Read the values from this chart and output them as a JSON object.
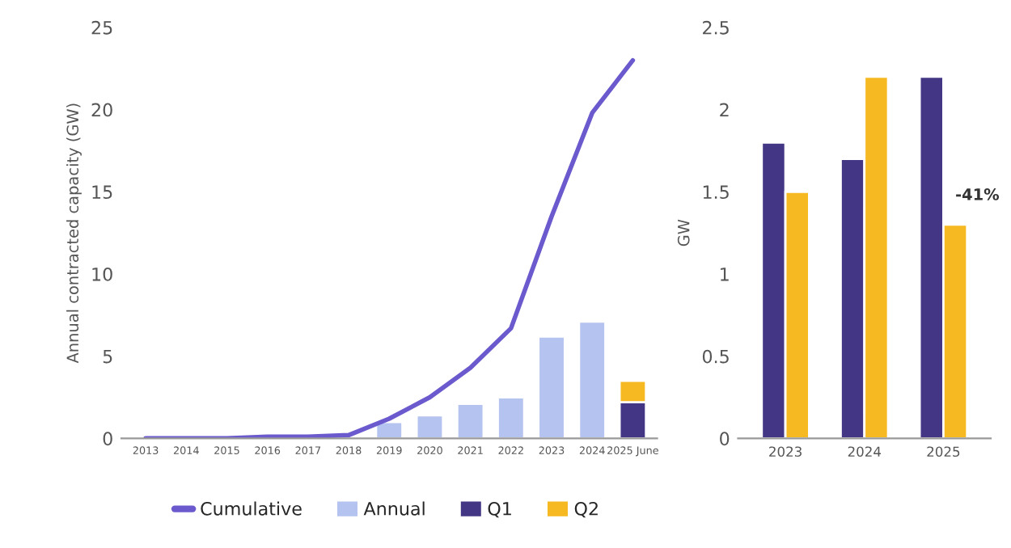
{
  "chart_data": [
    {
      "type": "bar",
      "stacked": true,
      "ylabel": "Annual contracted capacity (GW)",
      "categories": [
        "2013",
        "2014",
        "2015",
        "2016",
        "2017",
        "2018",
        "2019",
        "2020",
        "2021",
        "2022",
        "2023",
        "2024",
        "2025 June"
      ],
      "series": [
        {
          "name": "Annual",
          "color": "#b4c3ef",
          "values": [
            null,
            null,
            null,
            null,
            null,
            null,
            1.0,
            1.4,
            2.1,
            2.5,
            6.2,
            7.1,
            null
          ]
        },
        {
          "name": "Q1",
          "color": "#433785",
          "values": [
            null,
            null,
            null,
            null,
            null,
            null,
            null,
            null,
            null,
            null,
            null,
            null,
            2.2
          ]
        },
        {
          "name": "Q2",
          "color": "#f6b922",
          "values": [
            null,
            null,
            null,
            null,
            null,
            null,
            null,
            null,
            null,
            null,
            null,
            null,
            1.3
          ]
        },
        {
          "name": "Cumulative",
          "type": "line",
          "color": "#6a5acd",
          "values": [
            0,
            0,
            0,
            0.1,
            0.1,
            0.2,
            1.2,
            2.5,
            4.3,
            6.7,
            13.5,
            19.8,
            23.0
          ]
        }
      ],
      "ylim": [
        0,
        25
      ],
      "yticks": [
        0,
        5,
        10,
        15,
        20,
        25
      ],
      "legend": "bottom",
      "grid": false
    },
    {
      "type": "bar",
      "ylabel": "GW",
      "categories": [
        "2023",
        "2024",
        "2025"
      ],
      "series": [
        {
          "color": "#433785",
          "values": [
            1.8,
            1.7,
            2.2
          ]
        },
        {
          "color": "#f6b922",
          "values": [
            1.5,
            2.2,
            1.3
          ]
        }
      ],
      "ylim": [
        0,
        2.5
      ],
      "yticks": [
        0,
        0.5,
        1,
        1.5,
        2,
        2.5
      ],
      "annotations": [
        {
          "text": "-41%",
          "x": "2025",
          "y": 1.45
        }
      ],
      "grid": false
    }
  ]
}
